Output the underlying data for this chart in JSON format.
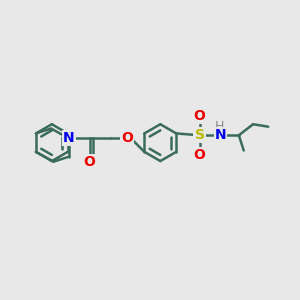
{
  "bg_color": "#e8e8e8",
  "bond_color": "#3a6b5c",
  "bond_width": 1.8,
  "N_color": "#0000ee",
  "O_color": "#ee0000",
  "S_color": "#bbbb00",
  "H_color": "#888888",
  "font_size": 10,
  "fig_width": 3.0,
  "fig_height": 3.0,
  "dpi": 100,
  "xlim": [
    0,
    12
  ],
  "ylim": [
    0,
    10
  ]
}
